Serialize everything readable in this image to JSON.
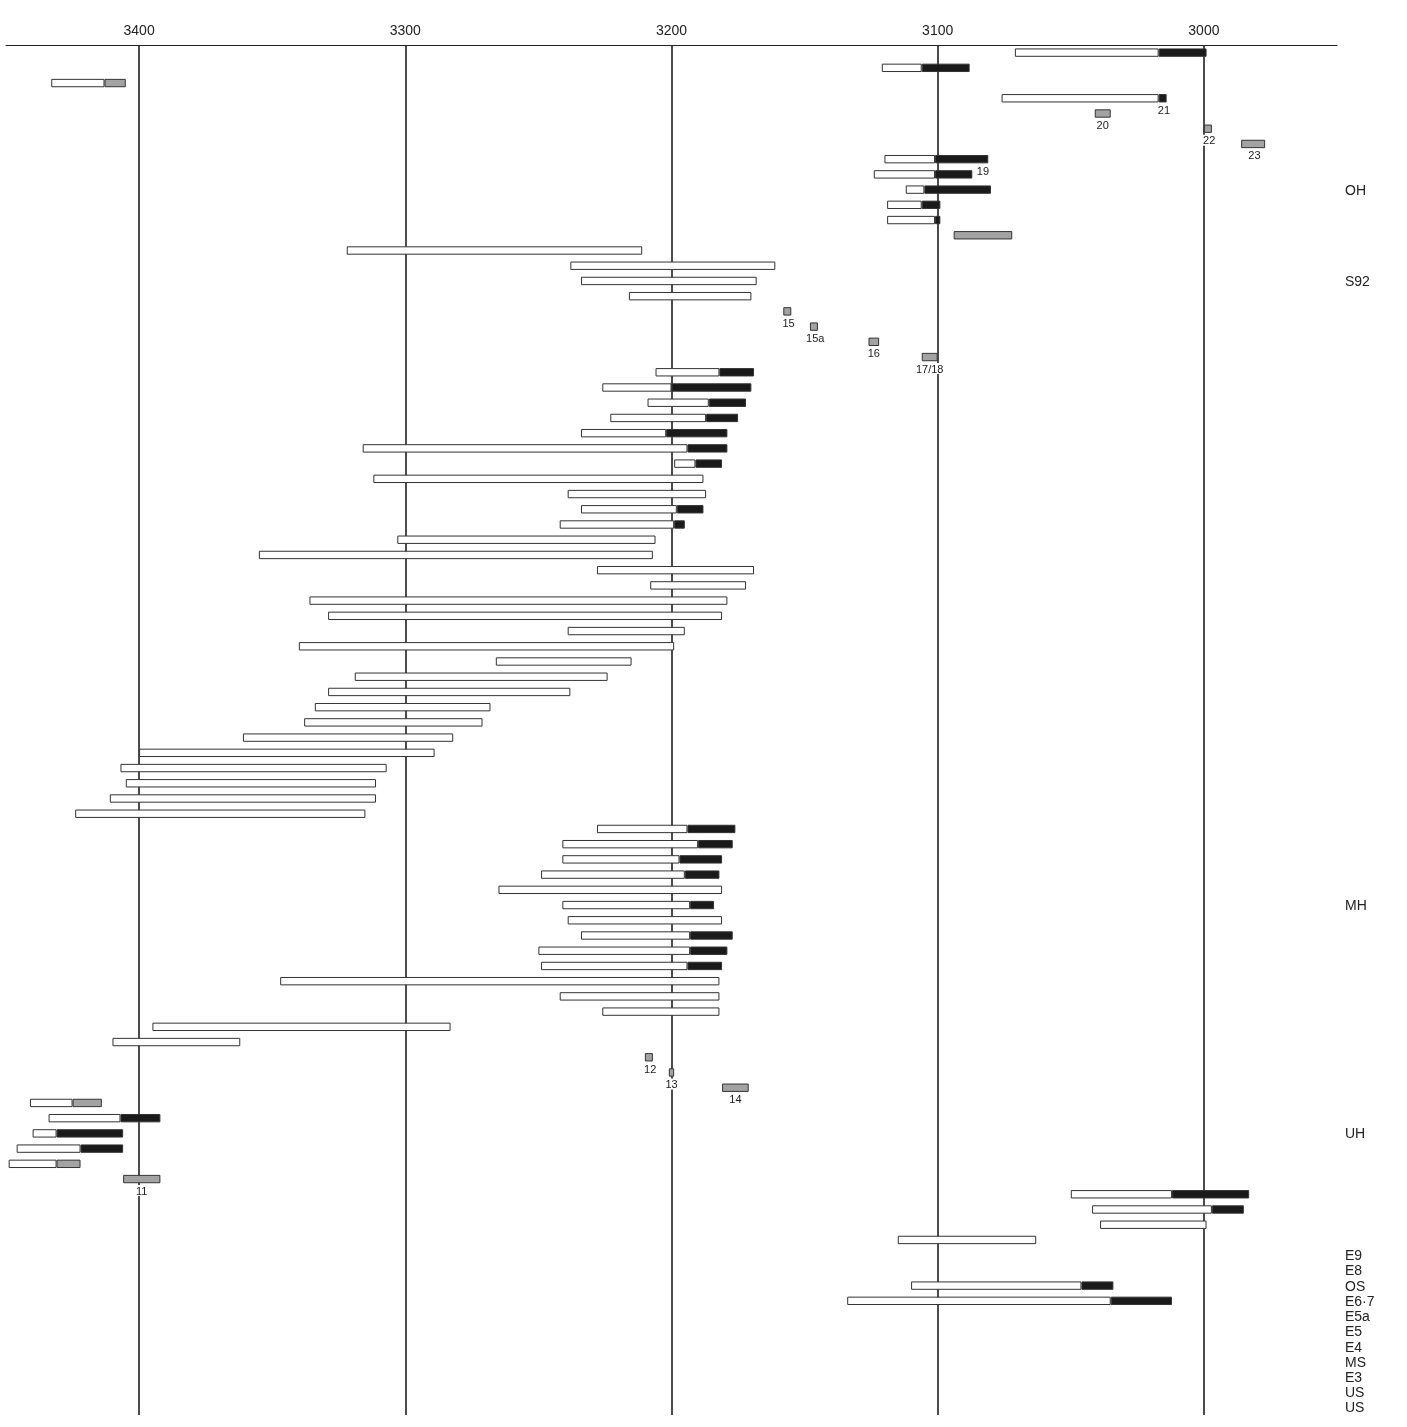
{
  "chart_data": {
    "type": "bar",
    "orientation": "horizontal",
    "categories": [
      null,
      null,
      null,
      null,
      null,
      null,
      null,
      null,
      null,
      "OH",
      null,
      null,
      null,
      null,
      null,
      "S92",
      null,
      null,
      null,
      null,
      null,
      null,
      null,
      null,
      null,
      null,
      null,
      null,
      null,
      null,
      null,
      null,
      null,
      null,
      null,
      null,
      null,
      null,
      null,
      null,
      null,
      null,
      null,
      null,
      null,
      null,
      null,
      null,
      null,
      null,
      null,
      null,
      null,
      null,
      null,
      null,
      "MH",
      null,
      null,
      null,
      null,
      null,
      null,
      null,
      null,
      null,
      null,
      null,
      null,
      null,
      null,
      "UH",
      null,
      null,
      null,
      null,
      null,
      null,
      null,
      "E9",
      "E8",
      "OS",
      "E6·7",
      "E5a",
      "E5",
      "E4",
      "MS",
      "E3",
      "US",
      "US"
    ],
    "series": [
      {
        "color": "#1a1a1a",
        "base": [
          2999,
          3088,
          null,
          3014,
          null,
          null,
          null,
          3081,
          3087,
          3080,
          3099,
          3099,
          null,
          null,
          null,
          null,
          null,
          null,
          null,
          null,
          null,
          3169,
          3170,
          3172,
          3175,
          3179,
          3179,
          3181,
          null,
          null,
          3188,
          3195,
          null,
          null,
          null,
          null,
          null,
          null,
          null,
          null,
          null,
          null,
          null,
          null,
          null,
          null,
          null,
          null,
          null,
          null,
          null,
          3176,
          3177,
          3181,
          3182,
          null,
          3184,
          null,
          3177,
          3179,
          3181,
          null,
          null,
          null,
          null,
          null,
          null,
          null,
          null,
          null,
          3392,
          3406,
          3406,
          null,
          null,
          2983,
          2985,
          null,
          null,
          null,
          null,
          3034,
          3012,
          null,
          null,
          null,
          null,
          null,
          null,
          null
        ],
        "values": [
          18,
          18,
          null,
          3,
          null,
          null,
          null,
          20,
          14,
          25,
          7,
          2,
          null,
          null,
          null,
          null,
          null,
          null,
          null,
          null,
          null,
          13,
          30,
          14,
          12,
          23,
          15,
          10,
          null,
          null,
          10,
          4,
          null,
          null,
          null,
          null,
          null,
          null,
          null,
          null,
          null,
          null,
          null,
          null,
          null,
          null,
          null,
          null,
          null,
          null,
          null,
          18,
          13,
          16,
          13,
          null,
          9,
          null,
          16,
          14,
          13,
          null,
          null,
          null,
          null,
          null,
          null,
          null,
          null,
          null,
          15,
          25,
          16,
          null,
          null,
          29,
          12,
          null,
          null,
          null,
          null,
          12,
          23,
          null,
          null,
          null,
          null,
          null,
          null,
          null
        ]
      },
      {
        "color": "#a3a3a3",
        "base": [
          null,
          null,
          3405,
          null,
          3035,
          2997,
          2977,
          null,
          null,
          null,
          null,
          null,
          3072,
          null,
          null,
          null,
          null,
          3155,
          3145,
          3122,
          3100,
          null,
          null,
          null,
          null,
          null,
          null,
          null,
          null,
          null,
          null,
          null,
          null,
          null,
          null,
          null,
          null,
          null,
          null,
          null,
          null,
          null,
          null,
          null,
          null,
          null,
          null,
          null,
          null,
          null,
          null,
          null,
          null,
          null,
          null,
          null,
          null,
          null,
          null,
          null,
          null,
          null,
          null,
          null,
          null,
          null,
          3207,
          3199,
          3171,
          3414,
          null,
          null,
          null,
          3422,
          3392,
          null,
          null,
          null,
          null,
          null,
          null,
          null,
          null,
          null,
          null,
          null,
          null,
          null,
          null,
          null
        ],
        "values": [
          null,
          null,
          8,
          null,
          6,
          3,
          9,
          null,
          null,
          null,
          null,
          null,
          22,
          null,
          null,
          null,
          null,
          3,
          3,
          4,
          6,
          null,
          null,
          null,
          null,
          null,
          null,
          null,
          null,
          null,
          null,
          null,
          null,
          null,
          null,
          null,
          null,
          null,
          null,
          null,
          null,
          null,
          null,
          null,
          null,
          null,
          null,
          null,
          null,
          null,
          null,
          null,
          null,
          null,
          null,
          null,
          null,
          null,
          null,
          null,
          null,
          null,
          null,
          null,
          null,
          null,
          3,
          2,
          10,
          11,
          null,
          null,
          null,
          9,
          14,
          null,
          null,
          null,
          null,
          null,
          null,
          null,
          null,
          null,
          null,
          null,
          null,
          null,
          null,
          null
        ]
      },
      {
        "color": "#ffffff",
        "base": [
          3017,
          3106,
          3413,
          3017,
          null,
          null,
          null,
          3101,
          3101,
          3105,
          3106,
          3101,
          null,
          3211,
          3161,
          3168,
          3170,
          null,
          null,
          null,
          null,
          3182,
          3200,
          3186,
          3187,
          3202,
          3194,
          3191,
          3188,
          3187,
          3198,
          3199,
          3206,
          3207,
          3169,
          3172,
          3179,
          3181,
          3195,
          3199,
          3215,
          3224,
          3238,
          3268,
          3271,
          3282,
          3289,
          3307,
          3311,
          3311,
          3315,
          3194,
          3190,
          3197,
          3195,
          3181,
          3193,
          3181,
          3193,
          3193,
          3194,
          3182,
          3182,
          3182,
          3283,
          3362,
          null,
          null,
          null,
          3425,
          3407,
          3431,
          3422,
          3431,
          null,
          3012,
          2997,
          2999,
          3063,
          null,
          null,
          3046,
          3035,
          null,
          null,
          null,
          null,
          null,
          null,
          null
        ],
        "values": [
          54,
          15,
          20,
          59,
          null,
          null,
          null,
          19,
          23,
          7,
          13,
          18,
          null,
          111,
          77,
          66,
          46,
          null,
          null,
          null,
          null,
          24,
          26,
          23,
          36,
          32,
          122,
          8,
          124,
          52,
          36,
          43,
          97,
          148,
          59,
          36,
          157,
          148,
          44,
          141,
          51,
          95,
          91,
          66,
          67,
          79,
          111,
          100,
          94,
          100,
          109,
          34,
          51,
          44,
          54,
          84,
          48,
          58,
          41,
          57,
          55,
          165,
          60,
          44,
          112,
          48,
          null,
          null,
          null,
          16,
          27,
          9,
          24,
          18,
          null,
          38,
          45,
          40,
          52,
          null,
          null,
          64,
          99,
          null,
          null,
          null,
          null,
          null,
          null,
          null
        ]
      }
    ],
    "annotations": [
      {
        "text": "21",
        "x": 3015
      },
      {
        "text": "20",
        "x": 3038
      },
      {
        "text": "22",
        "x": 2998
      },
      {
        "text": "23",
        "x": 2981
      },
      {
        "text": "19",
        "x": 3083
      },
      {
        "text": "15",
        "x": 3156
      },
      {
        "text": "15a",
        "x": 3146
      },
      {
        "text": "16",
        "x": 3124
      },
      {
        "text": "17/18",
        "x": 3103
      },
      {
        "text": "12",
        "x": 3208
      },
      {
        "text": "13",
        "x": 3200
      },
      {
        "text": "14",
        "x": 3176
      },
      {
        "text": "11",
        "x": 3399
      }
    ],
    "xlim": [
      3450,
      2950
    ],
    "xticks": [
      3400,
      3300,
      3200,
      3100,
      3000
    ],
    "grid": "x"
  }
}
